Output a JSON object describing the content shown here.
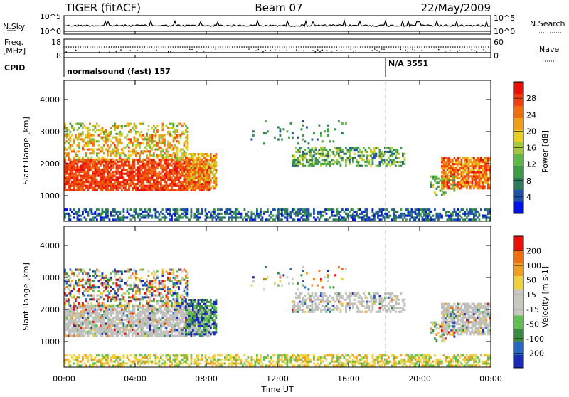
{
  "header": {
    "radar": "TIGER (fitACF)",
    "beam": "Beam 07",
    "date": "22/May/2009"
  },
  "top_panel": {
    "nsky_label": "N.Sky",
    "nsky_tick_top": "10^5",
    "nsky_tick_bottom": "10^0",
    "nsearch_label": "N.Search",
    "nsearch_tick_top": "10^5",
    "nsearch_tick_bottom": "10^0",
    "freq_label_1": "Freq.",
    "freq_label_2": "[MHz]",
    "freq_tick_top": "18",
    "freq_tick_bottom": "8",
    "nave_label": "Nave",
    "nave_tick_top": "60",
    "nave_tick_bottom": "0",
    "cpid_label": "CPID",
    "cpid_1": "normalsound (fast) 157",
    "cpid_2": "N/A 3551"
  },
  "chart_data": [
    {
      "type": "heatmap",
      "panel": "power",
      "ylabel": "Slant Range [km]",
      "xlabel": "",
      "ylim": [
        200,
        4600
      ],
      "xlim": [
        0,
        24
      ],
      "y_ticks": [
        "4000",
        "3000",
        "2000",
        "1000"
      ],
      "colorbar": {
        "label": "Power [dB]",
        "ticks": [
          "28",
          "24",
          "20",
          "16",
          "12",
          "8",
          "4"
        ],
        "colors": [
          "#0010e8",
          "#1e50a8",
          "#2e7a5a",
          "#3a9a46",
          "#60b648",
          "#a8c83c",
          "#e8d020",
          "#f0a018",
          "#f07010",
          "#f04010",
          "#e81008"
        ]
      }
    },
    {
      "type": "heatmap",
      "panel": "velocity",
      "ylabel": "Slant Range [km]",
      "xlabel": "Time UT",
      "ylim": [
        200,
        4600
      ],
      "xlim": [
        0,
        24
      ],
      "y_ticks": [
        "4000",
        "3000",
        "2000",
        "1000"
      ],
      "x_ticks": [
        "00:00",
        "04:00",
        "08:00",
        "12:00",
        "16:00",
        "20:00",
        "00:00"
      ],
      "colorbar": {
        "label": "Velocity [m s-1]",
        "ticks": [
          "200",
          "100",
          "50",
          "15",
          "-15",
          "-50",
          "-100",
          "-200"
        ],
        "colors": [
          "#1a2ab8",
          "#2868c0",
          "#3a8a40",
          "#62c050",
          "#c8c8c0",
          "#c8c8c0",
          "#f0d040",
          "#f0a020",
          "#f07010",
          "#e81008"
        ]
      }
    }
  ],
  "colors": {
    "axis": "#000000",
    "ground": "#a0a0a0"
  }
}
